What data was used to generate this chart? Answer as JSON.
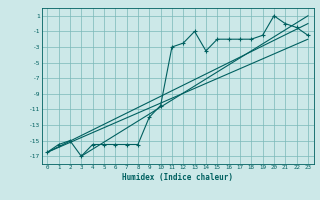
{
  "title": "",
  "xlabel": "Humidex (Indice chaleur)",
  "ylabel": "",
  "bg_color": "#cce8e8",
  "grid_color": "#7ab8b8",
  "line_color": "#006060",
  "xlim": [
    -0.5,
    23.5
  ],
  "ylim": [
    -18,
    2
  ],
  "xticks": [
    0,
    1,
    2,
    3,
    4,
    5,
    6,
    7,
    8,
    9,
    10,
    11,
    12,
    13,
    14,
    15,
    16,
    17,
    18,
    19,
    20,
    21,
    22,
    23
  ],
  "yticks": [
    1,
    -1,
    -3,
    -5,
    -7,
    -9,
    -11,
    -13,
    -15,
    -17
  ],
  "scatter_x": [
    0,
    1,
    2,
    3,
    4,
    5,
    6,
    7,
    8,
    9,
    10,
    11,
    12,
    13,
    14,
    15,
    16,
    17,
    18,
    19,
    20,
    21,
    22,
    23
  ],
  "scatter_y": [
    -16.5,
    -15.5,
    -15,
    -17,
    -15.5,
    -15.5,
    -15.5,
    -15.5,
    -15.5,
    -12,
    -10.5,
    -3,
    -2.5,
    -1,
    -3.5,
    -2,
    -2,
    -2,
    -2,
    -1.5,
    1,
    0,
    -0.5,
    -1.5
  ],
  "line1_x": [
    0,
    23
  ],
  "line1_y": [
    -16.5,
    0
  ],
  "line2_x": [
    0,
    23
  ],
  "line2_y": [
    -16.5,
    -2
  ],
  "line3_x": [
    3,
    23
  ],
  "line3_y": [
    -17,
    1
  ]
}
